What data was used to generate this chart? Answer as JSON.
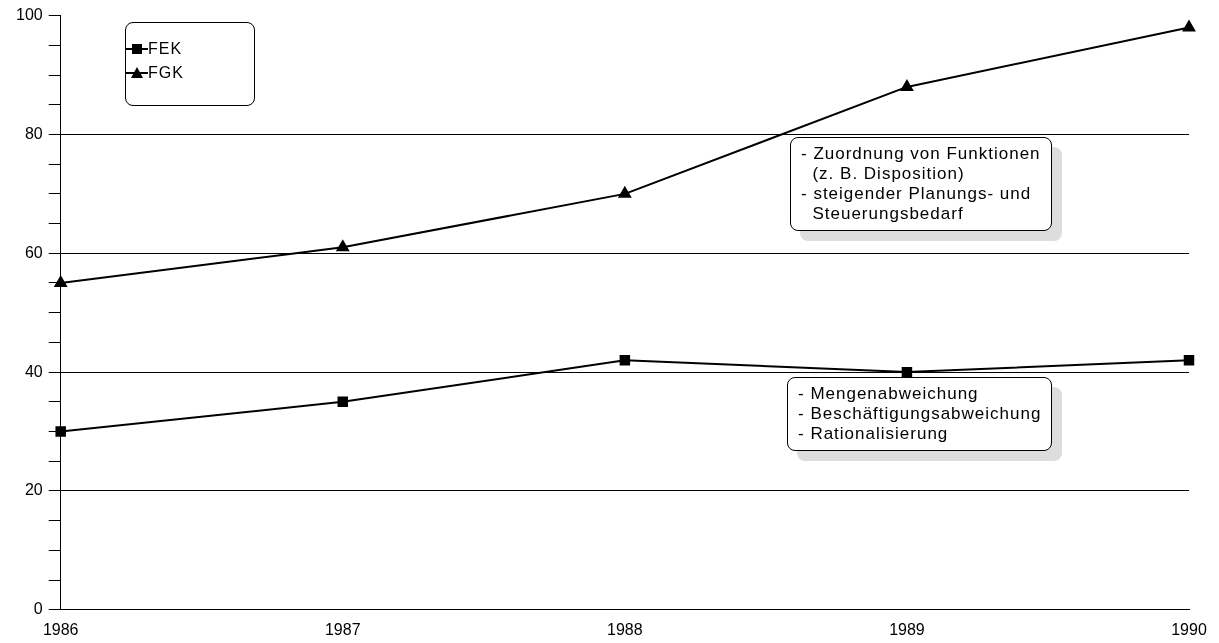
{
  "chart_data": {
    "type": "line",
    "categories": [
      "1986",
      "1987",
      "1988",
      "1989",
      "1990"
    ],
    "series": [
      {
        "name": "FEK",
        "color": "#000000",
        "marker": "square",
        "values": [
          30,
          35,
          42,
          40,
          42
        ]
      },
      {
        "name": "FGK",
        "color": "#000000",
        "marker": "triangle",
        "values": [
          55,
          61,
          70,
          88,
          98
        ]
      }
    ],
    "ylim": [
      0,
      100
    ],
    "yticks": [
      0,
      {
        "value": 5,
        "label": null
      },
      {
        "value": 10,
        "label": null
      },
      {
        "value": 15,
        "label": null
      },
      20,
      {
        "value": 25,
        "label": null
      },
      {
        "value": 30,
        "label": null
      },
      {
        "value": 35,
        "label": null
      },
      40,
      {
        "value": 45,
        "label": null
      },
      {
        "value": 50,
        "label": null
      },
      {
        "value": 55,
        "label": null
      },
      60,
      {
        "value": 65,
        "label": null
      },
      {
        "value": 70,
        "label": null
      },
      {
        "value": 75,
        "label": null
      },
      80,
      {
        "value": 85,
        "label": null
      },
      {
        "value": 90,
        "label": null
      },
      {
        "value": 95,
        "label": null
      },
      100
    ],
    "grid": "y",
    "legend": "top left",
    "line_style": "solid",
    "annotations": [
      "- Zuordnung von Funktionen\n  (z. B. Disposition)\n- steigender Planungs- und\n  Steuerungsbedarf",
      "- Mengenabweichung\n- Beschäftigungsabweichung\n- Rationalisierung"
    ]
  }
}
